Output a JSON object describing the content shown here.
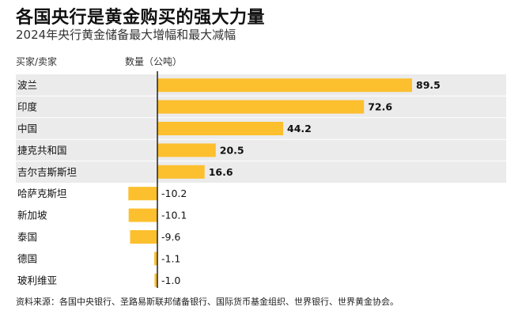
{
  "title": "各国央行是黄金购买的强大力量",
  "subtitle": "2024年央行黄金储备最大增幅和最大减幅",
  "columns": {
    "country": "买家/卖家",
    "amount": "数量（公吨）"
  },
  "source": "资料来源：各国中央银行、圣路易斯联邦储备银行、国际货币基金组织、世界银行、世界黄金协会。",
  "colors": {
    "bar": "#fcbf2e",
    "highlight_band": "#ebebeb",
    "axis": "#222222",
    "text": "#111111"
  },
  "chart_data": {
    "type": "bar",
    "orientation": "horizontal",
    "unit": "公吨",
    "categories": [
      "波兰",
      "印度",
      "中国",
      "捷克共和国",
      "吉尔吉斯斯坦",
      "哈萨克斯坦",
      "新加坡",
      "泰国",
      "德国",
      "玻利维亚"
    ],
    "values": [
      89.5,
      72.6,
      44.2,
      20.5,
      16.6,
      -10.2,
      -10.1,
      -9.6,
      -1.1,
      -1.0
    ],
    "labels": [
      "89.5",
      "72.6",
      "44.2",
      "20.5",
      "16.6",
      "-10.2",
      "-10.1",
      "-9.6",
      "-1.1",
      "-1.0"
    ],
    "xlim": [
      -12,
      102
    ],
    "highlighted_rows": [
      0,
      1,
      2,
      3,
      4
    ],
    "grid": false,
    "legend": "none"
  }
}
